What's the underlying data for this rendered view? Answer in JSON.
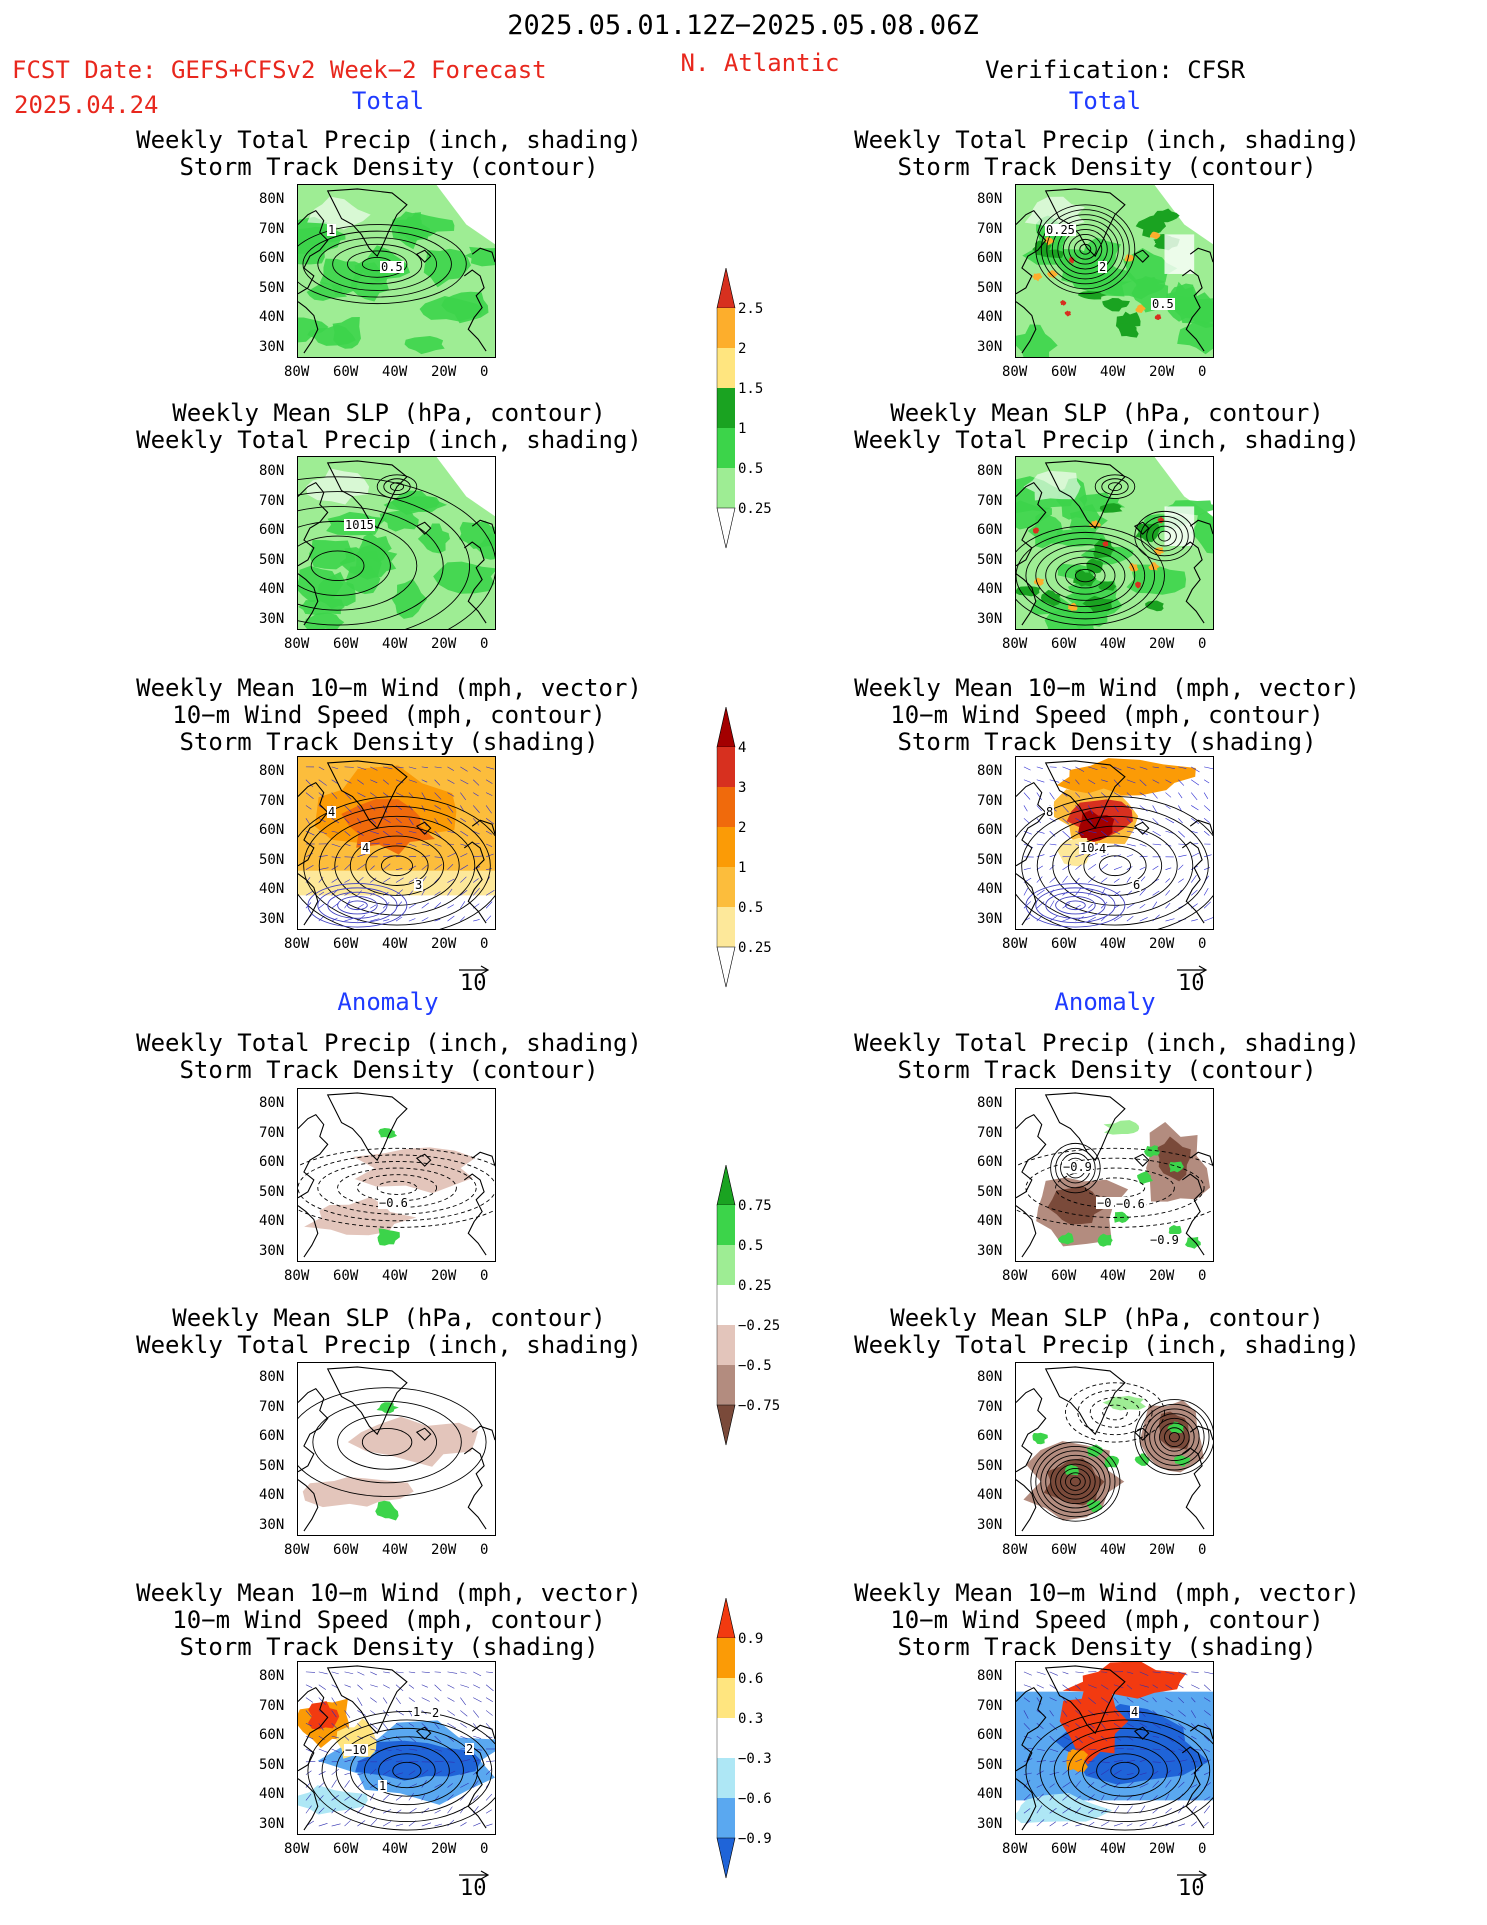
{
  "header": {
    "date_range": "2025.05.01.12Z−2025.05.08.06Z",
    "fcst_label": "FCST Date: GEFS+CFSv2 Week−2 Forecast",
    "fcst_date": "2025.04.24",
    "region": "N. Atlantic",
    "verification": "Verification: CFSR"
  },
  "sections": {
    "total": "Total",
    "anomaly": "Anomaly"
  },
  "titles": {
    "precip_storm": [
      "Weekly Total Precip (inch, shading)",
      "Storm Track Density (contour)"
    ],
    "slp_precip": [
      "Weekly Mean SLP (hPa, contour)",
      "Weekly Total Precip (inch, shading)"
    ],
    "wind_storm": [
      "Weekly Mean 10−m Wind (mph, vector)",
      "10−m Wind Speed (mph, contour)",
      "Storm Track Density (shading)"
    ]
  },
  "axes": {
    "lat_ticks": [
      "80N",
      "70N",
      "60N",
      "50N",
      "40N",
      "30N"
    ],
    "lon_ticks": [
      "80W",
      "60W",
      "40W",
      "20W",
      "0"
    ],
    "vector_ref": "10"
  },
  "contour_labels": {
    "fc_total_precip": [
      "1",
      "0.5"
    ],
    "ver_total_precip": [
      "0.25",
      "2",
      "0.5"
    ],
    "fc_total_slp": [
      "1015"
    ],
    "fc_total_wind": [
      "4",
      "3",
      "4"
    ],
    "ver_total_wind": [
      "10",
      "6",
      "8",
      "4"
    ],
    "fc_anom_precip": [
      "−0.6"
    ],
    "ver_anom_precip": [
      "−0.3",
      "−0.9",
      "−0.9",
      "−0.6"
    ],
    "fc_anom_wind": [
      "1",
      "2",
      "1",
      "2",
      "−10"
    ],
    "ver_anom_wind": [
      "4"
    ]
  },
  "colorbars": {
    "precip_total": {
      "labels": [
        "2.5",
        "2",
        "1.5",
        "1",
        "0.5",
        "0.25"
      ],
      "colors": [
        "#d7301f",
        "#fdae2c",
        "#ffe57f",
        "#1aa321",
        "#3cd44a",
        "#9eed94",
        "#ffffff"
      ]
    },
    "storm_total": {
      "labels": [
        "4",
        "3",
        "2",
        "1",
        "0.5",
        "0.25"
      ],
      "colors": [
        "#a30000",
        "#d7301f",
        "#f06a0c",
        "#fb9b06",
        "#fcbd3c",
        "#fde89a",
        "#ffffff"
      ]
    },
    "precip_anom": {
      "labels": [
        "0.75",
        "0.5",
        "0.25",
        "−0.25",
        "−0.5",
        "−0.75"
      ],
      "colors": [
        "#1aa321",
        "#3cd44a",
        "#9eed94",
        "#ffffff",
        "#e3c5bb",
        "#b38c7f",
        "#7a4a3a"
      ]
    },
    "storm_anom": {
      "labels": [
        "0.9",
        "0.6",
        "0.3",
        "−0.3",
        "−0.6",
        "−0.9"
      ],
      "colors": [
        "#f23a10",
        "#fb9b06",
        "#ffe57f",
        "#ffffff",
        "#aee7f5",
        "#5aa8f0",
        "#1f64d8"
      ]
    }
  }
}
